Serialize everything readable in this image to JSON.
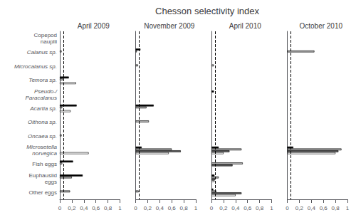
{
  "title": "Chesson selectivity index",
  "chart_data": [
    {
      "type": "bar",
      "orientation": "horizontal",
      "title": "April 2009",
      "categories": [
        "Copepod\nnauplii",
        "Calanus sp.",
        "Microcalanus sp.",
        "Temora sp.",
        "Pseudo-/\nParacalanus",
        "Acartia sp.",
        "Oithona sp.",
        "Oncaea sp.",
        "Microsetella\nnor­vegica",
        "Fish eggs",
        "Euphausiid\neggs",
        "Other eggs"
      ],
      "series": [
        {
          "color": "#000000",
          "values": [
            0,
            0,
            0,
            0.15,
            0,
            0.28,
            0,
            0,
            0,
            0.22,
            0.38,
            0
          ]
        },
        {
          "color": "#b0b0b0",
          "values": [
            0,
            0.03,
            0,
            0.05,
            0,
            0.04,
            0,
            0.03,
            0,
            0.04,
            0.2,
            0.17
          ]
        },
        {
          "color": "#606060",
          "values": [
            0,
            0,
            0,
            0,
            0,
            0,
            0,
            0,
            0,
            0,
            0,
            0
          ]
        },
        {
          "color": "#ffffff",
          "values": [
            0,
            0,
            0,
            0.27,
            0,
            0.18,
            0,
            0,
            0.48,
            0,
            0,
            0
          ]
        }
      ],
      "xlim": [
        0,
        1
      ],
      "xticks": [
        0,
        {
          "value": 0.2,
          "label": "0,2"
        },
        {
          "value": 0.4,
          "label": "0,4"
        },
        {
          "value": 0.6,
          "label": "0,6"
        },
        {
          "value": 0.8,
          "label": "0,8"
        },
        1
      ],
      "vline_x": 0.059,
      "grid": false
    },
    {
      "type": "bar",
      "orientation": "horizontal",
      "title": "November 2009",
      "categories": [
        "Copepod\nnauplii",
        "Calanus sp.",
        "Microcalanus sp.",
        "Temora sp.",
        "Pseudo-/\nParacalanus",
        "Acartia sp.",
        "Oithona sp.",
        "Oncaea sp.",
        "Microsetella\nnor­vegica",
        "Fish eggs",
        "Euphausiid\neggs",
        "Other eggs"
      ],
      "series": [
        {
          "color": "#000000",
          "values": [
            0,
            0.08,
            0,
            0,
            0,
            0.3,
            0,
            0,
            0.1,
            0,
            0,
            0
          ]
        },
        {
          "color": "#b0b0b0",
          "values": [
            0,
            0.02,
            0.04,
            0,
            0,
            0.18,
            0.22,
            0,
            0.6,
            0,
            0,
            0.05
          ]
        },
        {
          "color": "#606060",
          "values": [
            0,
            0,
            0,
            0,
            0,
            0,
            0,
            0,
            0.75,
            0,
            0,
            0
          ]
        },
        {
          "color": "#ffffff",
          "values": [
            0,
            0,
            0,
            0,
            0,
            0,
            0,
            0,
            0.55,
            0,
            0,
            0
          ]
        }
      ],
      "xlim": [
        0,
        1
      ],
      "xticks": [
        0,
        {
          "value": 0.2,
          "label": "0,2"
        },
        {
          "value": 0.4,
          "label": "0,4"
        },
        {
          "value": 0.6,
          "label": "0,6"
        },
        {
          "value": 0.8,
          "label": "0,8"
        },
        1
      ],
      "vline_x": 0.059,
      "grid": false,
      "tick_labels": "x"
    },
    {
      "type": "bar",
      "orientation": "horizontal",
      "title": "April 2010",
      "categories": [
        "Copepod\nnauplii",
        "Calanus sp.",
        "Microcalanus sp.",
        "Temora sp.",
        "Pseudo-/\nParacalanus",
        "Acartia sp.",
        "Oithona sp.",
        "Oncaea sp.",
        "Microsetella\nnor­vegica",
        "Fish eggs",
        "Euphausiid\neggs",
        "Other eggs"
      ],
      "series": [
        {
          "color": "#000000",
          "values": [
            0,
            0,
            0,
            0,
            0.04,
            0,
            0,
            0,
            0.12,
            0,
            0.05,
            0.03
          ]
        },
        {
          "color": "#b0b0b0",
          "values": [
            0,
            0,
            0.04,
            0,
            0,
            0,
            0,
            0,
            0.5,
            0.52,
            0.12,
            0.08
          ]
        },
        {
          "color": "#606060",
          "values": [
            0,
            0,
            0,
            0,
            0,
            0,
            0,
            0,
            0.3,
            0.35,
            0.06,
            0.5
          ]
        },
        {
          "color": "#ffffff",
          "values": [
            0,
            0,
            0,
            0,
            0,
            0,
            0,
            0,
            0.2,
            0,
            0.05,
            0.4
          ]
        }
      ],
      "xlim": [
        0,
        1
      ],
      "xticks": [
        0,
        {
          "value": 0.2,
          "label": "0,2"
        },
        {
          "value": 0.4,
          "label": "0,4"
        },
        {
          "value": 0.6,
          "label": "0,6"
        },
        {
          "value": 0.8,
          "label": "0,8"
        },
        1
      ],
      "vline_x": 0.059,
      "grid": false,
      "tick_labels": "x"
    },
    {
      "type": "bar",
      "orientation": "horizontal",
      "title": "October 2010",
      "categories": [
        "Copepod\nnauplii",
        "Calanus sp.",
        "Microcalanus sp.",
        "Temora sp.",
        "Pseudo-/\nParacalanus",
        "Acartia sp.",
        "Oithona sp.",
        "Oncaea sp.",
        "Microsetella\nnor­vegica",
        "Fish eggs",
        "Euphausiid\neggs",
        "Other eggs"
      ],
      "series": [
        {
          "color": "#000000",
          "values": [
            0,
            0,
            0,
            0,
            0,
            0,
            0,
            0,
            0.1,
            0,
            0,
            0
          ]
        },
        {
          "color": "#b0b0b0",
          "values": [
            0,
            0.45,
            0,
            0,
            0,
            0,
            0,
            0,
            0.9,
            0,
            0,
            0
          ]
        },
        {
          "color": "#606060",
          "values": [
            0,
            0,
            0,
            0,
            0,
            0,
            0,
            0,
            0.85,
            0,
            0,
            0
          ]
        },
        {
          "color": "#ffffff",
          "values": [
            0,
            0,
            0,
            0,
            0,
            0,
            0,
            0,
            0.8,
            0,
            0,
            0
          ]
        }
      ],
      "xlim": [
        0,
        1
      ],
      "xticks": [
        0,
        {
          "value": 0.2,
          "label": "0,2"
        },
        {
          "value": 0.4,
          "label": "0,4"
        },
        {
          "value": 0.6,
          "label": "0,6"
        },
        {
          "value": 0.8,
          "label": "0,8"
        },
        1
      ],
      "vline_x": 0.059,
      "grid": false,
      "tick_labels": "x"
    }
  ]
}
